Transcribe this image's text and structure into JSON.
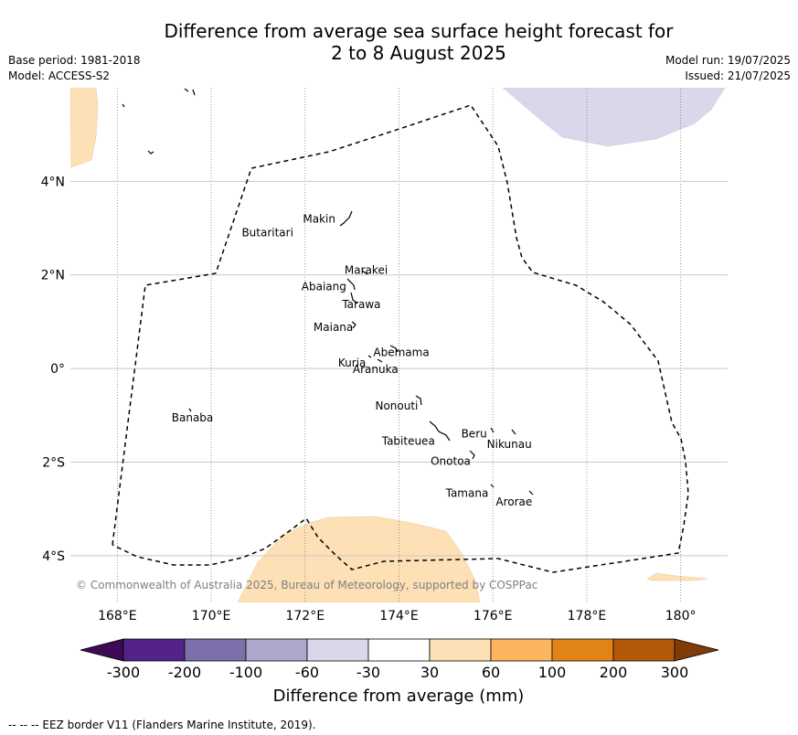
{
  "title_line1": "Difference from average sea surface height forecast for",
  "title_line2": "2 to 8 August 2025",
  "meta_left": [
    "Base period: 1981-2018",
    "Model: ACCESS-S2"
  ],
  "meta_right": [
    "Model run: 19/07/2025",
    "Issued: 21/07/2025"
  ],
  "map": {
    "lon_range": [
      167,
      181
    ],
    "lat_range": [
      -5,
      6
    ],
    "lon_ticks": [
      {
        "value": 168,
        "label": "168°E"
      },
      {
        "value": 170,
        "label": "170°E"
      },
      {
        "value": 172,
        "label": "172°E"
      },
      {
        "value": 174,
        "label": "174°E"
      },
      {
        "value": 176,
        "label": "176°E"
      },
      {
        "value": 178,
        "label": "178°E"
      },
      {
        "value": 180,
        "label": "180°"
      }
    ],
    "lat_ticks": [
      {
        "value": 4,
        "label": "4°N"
      },
      {
        "value": 2,
        "label": "2°N"
      },
      {
        "value": 0,
        "label": "0°"
      },
      {
        "value": -2,
        "label": "2°S"
      },
      {
        "value": -4,
        "label": "4°S"
      }
    ],
    "places": [
      {
        "name": "Makin",
        "lon": 172.3,
        "lat": 3.2
      },
      {
        "name": "Butaritari",
        "lon": 171.2,
        "lat": 2.9
      },
      {
        "name": "Marakei",
        "lon": 173.3,
        "lat": 2.1
      },
      {
        "name": "Abaiang",
        "lon": 172.4,
        "lat": 1.75
      },
      {
        "name": "Tarawa",
        "lon": 173.2,
        "lat": 1.37
      },
      {
        "name": "Maiana",
        "lon": 172.6,
        "lat": 0.88
      },
      {
        "name": "Abemama",
        "lon": 174.05,
        "lat": 0.34
      },
      {
        "name": "Kuria",
        "lon": 173.0,
        "lat": 0.12
      },
      {
        "name": "Aranuka",
        "lon": 173.5,
        "lat": -0.02
      },
      {
        "name": "Nonouti",
        "lon": 173.95,
        "lat": -0.8
      },
      {
        "name": "Banaba",
        "lon": 169.6,
        "lat": -1.05
      },
      {
        "name": "Beru",
        "lon": 175.6,
        "lat": -1.4
      },
      {
        "name": "Tabiteuea",
        "lon": 174.2,
        "lat": -1.55
      },
      {
        "name": "Nikunau",
        "lon": 176.35,
        "lat": -1.62
      },
      {
        "name": "Onotoa",
        "lon": 175.1,
        "lat": -1.98
      },
      {
        "name": "Tamana",
        "lon": 175.45,
        "lat": -2.67
      },
      {
        "name": "Arorae",
        "lon": 176.45,
        "lat": -2.85
      }
    ]
  },
  "colorbar": {
    "title": "Difference from average (mm)",
    "ticks": [
      "-300",
      "-200",
      "-100",
      "-60",
      "-30",
      "30",
      "60",
      "100",
      "200",
      "300"
    ],
    "colors": [
      "#3f0a55",
      "#54238a",
      "#7e6fab",
      "#ada6cd",
      "#d8d8ea",
      "#ffffff",
      "#fde0b5",
      "#fdb55d",
      "#e28316",
      "#b35806",
      "#7f3b08"
    ]
  },
  "copyright": "© Commonwealth of Australia 2025, Bureau of Meteorology, supported by COSPPac",
  "footnote": "--  --  -- EEZ border V11 (Flanders Marine Institute, 2019)."
}
